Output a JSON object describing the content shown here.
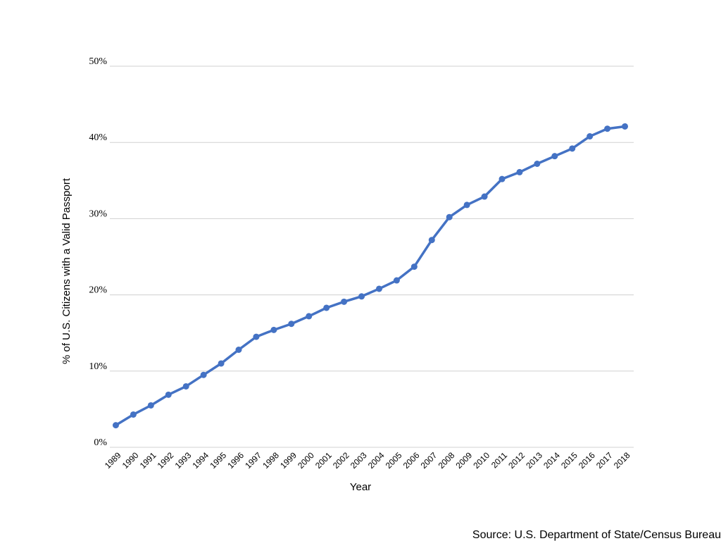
{
  "chart_data": {
    "type": "line",
    "x_label": "Year",
    "y_label": "% of U.S. Citizens with a Valid Passport",
    "source": "Source: U.S. Department of State/Census Bureau",
    "categories": [
      "1989",
      "1990",
      "1991",
      "1992",
      "1993",
      "1994",
      "1995",
      "1996",
      "1997",
      "1998",
      "1999",
      "2000",
      "2001",
      "2002",
      "2003",
      "2004",
      "2005",
      "2006",
      "2007",
      "2008",
      "2009",
      "2010",
      "2011",
      "2012",
      "2013",
      "2014",
      "2015",
      "2016",
      "2017",
      "2018"
    ],
    "series": [
      {
        "color": "#4472c4",
        "values": [
          2.9,
          4.3,
          5.5,
          6.9,
          8.0,
          9.5,
          11.0,
          12.8,
          14.5,
          15.4,
          16.2,
          17.2,
          18.3,
          19.1,
          19.8,
          20.8,
          21.9,
          23.7,
          27.2,
          30.2,
          31.8,
          32.9,
          35.2,
          36.1,
          37.2,
          38.2,
          39.2,
          40.8,
          41.8,
          42.1
        ]
      }
    ],
    "ylim": [
      0,
      50
    ],
    "yticks": [
      {
        "value": 0,
        "label": "0%"
      },
      {
        "value": 10,
        "label": "10%"
      },
      {
        "value": 20,
        "label": "20%"
      },
      {
        "value": 30,
        "label": "30%"
      },
      {
        "value": 40,
        "label": "40%"
      },
      {
        "value": 50,
        "label": "50%"
      }
    ],
    "grid": true
  }
}
